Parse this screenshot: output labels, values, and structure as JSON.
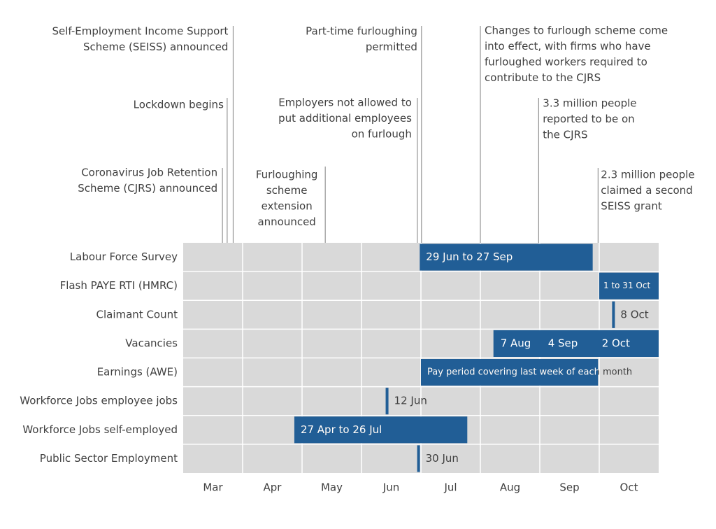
{
  "chart_data": {
    "type": "timeline",
    "categories": [
      "Labour Force Survey",
      "Flash PAYE RTI (HMRC)",
      "Claimant Count",
      "Vacancies",
      "Earnings (AWE)",
      "Workforce Jobs employee jobs",
      "Workforce Jobs self-employed",
      "Public Sector Employment"
    ],
    "xlim": [
      0,
      8
    ],
    "xticks": [
      {
        "value": 0.5,
        "label": "Mar"
      },
      {
        "value": 1.5,
        "label": "Apr"
      },
      {
        "value": 2.5,
        "label": "May"
      },
      {
        "value": 3.5,
        "label": "Jun"
      },
      {
        "value": 4.5,
        "label": "Jul"
      },
      {
        "value": 5.5,
        "label": "Aug"
      },
      {
        "value": 6.5,
        "label": "Sep"
      },
      {
        "value": 7.5,
        "label": "Oct"
      }
    ],
    "color": "#215e96",
    "bars": [
      {
        "start": 3.98,
        "end": 6.89,
        "labels": [
          "29 Jun to 27 Sep"
        ]
      },
      {
        "start": 7.0,
        "end": 8.0,
        "labels": [
          "1 to 31 Oct"
        ]
      },
      {
        "at": 7.24,
        "labels": [
          "8 Oct"
        ]
      },
      {
        "start": 5.22,
        "end": 8.0,
        "labels": [
          "7 Aug",
          "4 Sep",
          "2 Oct"
        ]
      },
      {
        "start": 4.0,
        "end": 6.98,
        "labels": [
          "Pay period covering last week of each month"
        ]
      },
      {
        "at": 3.43,
        "labels": [
          "12 Jun"
        ]
      },
      {
        "start": 1.87,
        "end": 4.78,
        "labels": [
          "27 Apr to 26 Jul"
        ]
      },
      {
        "at": 3.96,
        "labels": [
          "30 Jun"
        ]
      }
    ],
    "events": [
      {
        "x": 0.66,
        "lines": [
          "Coronavirus Job Retention",
          "Scheme (CJRS) announced"
        ]
      },
      {
        "x": 0.74,
        "lines": [
          "Lockdown begins"
        ]
      },
      {
        "x": 0.84,
        "lines": [
          "Self-Employment Income Support",
          "Scheme (SEISS) announced"
        ]
      },
      {
        "x": 2.39,
        "lines": [
          "Furloughing",
          "scheme",
          "extension",
          "announced"
        ]
      },
      {
        "x": 3.94,
        "lines": [
          "Employers not allowed to",
          "put additional employees",
          "on furlough"
        ]
      },
      {
        "x": 4.01,
        "lines": [
          "Part-time furloughing",
          "permitted"
        ]
      },
      {
        "x": 5.0,
        "lines": [
          "Changes to furlough scheme come",
          "into effect, with firms who have",
          "furloughed workers required to",
          "contribute to the CJRS"
        ]
      },
      {
        "x": 5.98,
        "lines": [
          "3.3 million people",
          "reported to be on",
          "the CJRS"
        ]
      },
      {
        "x": 6.98,
        "lines": [
          "2.3 million people",
          "claimed a second",
          "SEISS grant"
        ]
      }
    ]
  }
}
